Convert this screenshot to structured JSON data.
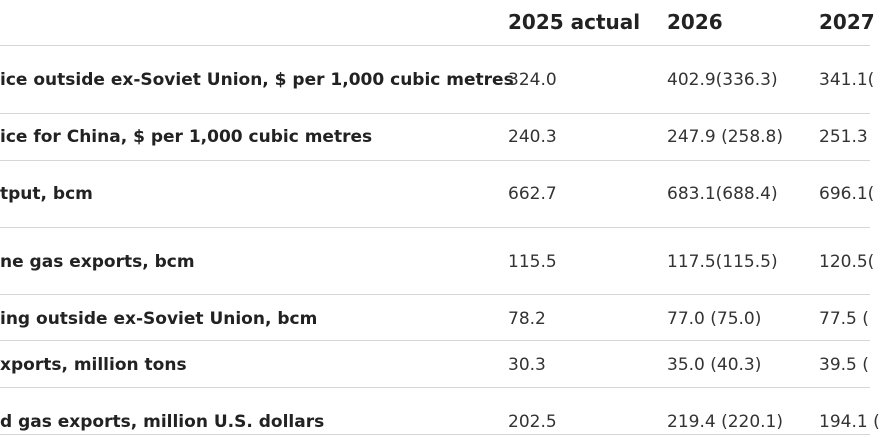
{
  "table": {
    "headers": [
      "",
      "2025 actual",
      "2026",
      "2027"
    ],
    "rows": [
      {
        "label": "ice outside ex-Soviet Union, $ per 1,000 cubic metres",
        "y2025": "324.0",
        "y2026": "402.9(336.3)",
        "y2027": "341.1("
      },
      {
        "label": "ice for China, $ per 1,000 cubic metres",
        "y2025": "240.3",
        "y2026": "247.9 (258.8)",
        "y2027": "251.3"
      },
      {
        "label": "tput, bcm",
        "y2025": "662.7",
        "y2026": "683.1(688.4)",
        "y2027": "696.1("
      },
      {
        "label": "ne gas exports, bcm",
        "y2025": "115.5",
        "y2026": "117.5(115.5)",
        "y2027": "120.5("
      },
      {
        "label": "ing outside ex-Soviet Union, bcm",
        "y2025": "78.2",
        "y2026": "77.0 (75.0)",
        "y2027": "77.5 ("
      },
      {
        "label": "xports, million tons",
        "y2025": "30.3",
        "y2026": "35.0 (40.3)",
        "y2027": "39.5 ("
      },
      {
        "label": "d gas exports, million U.S. dollars",
        "y2025": "202.5",
        "y2026": "219.4 (220.1)",
        "y2027": "194.1 ("
      }
    ]
  }
}
